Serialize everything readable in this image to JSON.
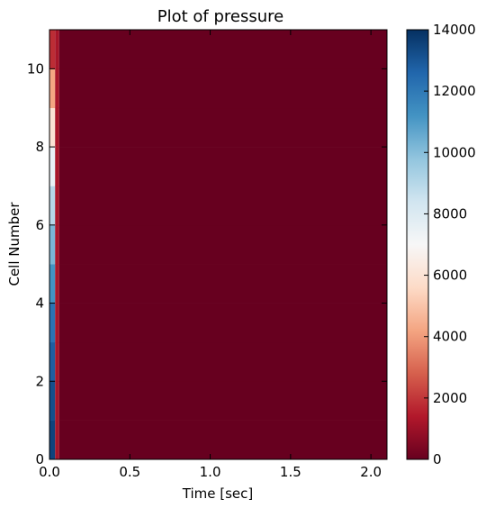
{
  "chart_data": {
    "type": "heatmap",
    "title": "Plot of pressure",
    "xlabel": "Time [sec]",
    "ylabel": "Cell Number",
    "xlim": [
      0.0,
      2.1
    ],
    "ylim": [
      0,
      11
    ],
    "grid": false,
    "x_ticks": [
      0.0,
      0.5,
      1.0,
      1.5,
      2.0
    ],
    "x_tick_labels": [
      "0.0",
      "0.5",
      "1.0",
      "1.5",
      "2.0"
    ],
    "y_ticks": [
      0,
      2,
      4,
      6,
      8,
      10
    ],
    "y_tick_labels": [
      "0",
      "2",
      "4",
      "6",
      "8",
      "10"
    ],
    "colormap": "RdBu",
    "colorbar": {
      "min": 0,
      "max": 14000,
      "ticks": [
        0,
        2000,
        4000,
        6000,
        8000,
        10000,
        12000,
        14000
      ],
      "tick_labels": [
        "0",
        "2000",
        "4000",
        "6000",
        "8000",
        "10000",
        "12000",
        "14000"
      ]
    },
    "time_edges": [
      0.0,
      0.035,
      0.06,
      2.1
    ],
    "cell_edges": [
      0,
      1,
      2,
      3,
      4,
      5,
      6,
      7,
      8,
      9,
      10,
      11
    ],
    "pressure": [
      [
        13500,
        13200,
        12800,
        12200,
        11200,
        10200,
        9000,
        7500,
        6000,
        4200,
        1800
      ],
      [
        1200,
        1200,
        1200,
        1200,
        1200,
        1200,
        1200,
        1200,
        1200,
        1200,
        1200
      ],
      [
        0,
        0,
        0,
        0,
        0,
        0,
        0,
        0,
        0,
        0,
        0
      ]
    ]
  }
}
